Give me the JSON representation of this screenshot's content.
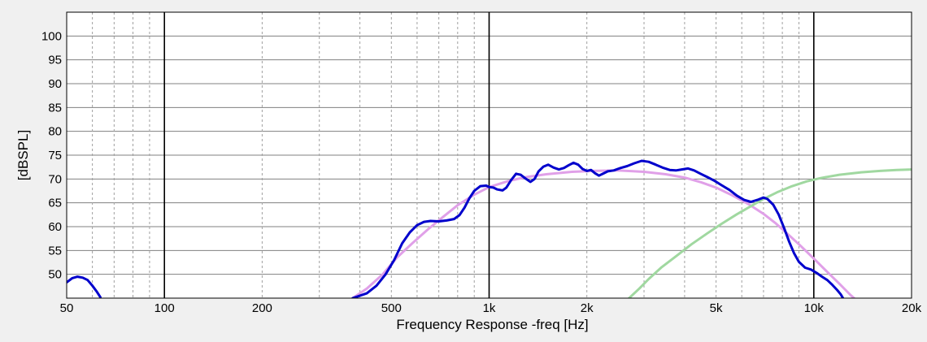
{
  "chart_data": {
    "type": "line",
    "title": "",
    "xlabel": "Frequency Response -freq [Hz]",
    "ylabel": "[dBSPL]",
    "x_scale": "log",
    "xlim": [
      50,
      20000
    ],
    "ylim": [
      45,
      105
    ],
    "grid": true,
    "x_ticks": [
      {
        "value": 50,
        "label": "50"
      },
      {
        "value": 100,
        "label": "100"
      },
      {
        "value": 200,
        "label": "200"
      },
      {
        "value": 500,
        "label": "500"
      },
      {
        "value": 1000,
        "label": "1k"
      },
      {
        "value": 2000,
        "label": "2k"
      },
      {
        "value": 5000,
        "label": "5k"
      },
      {
        "value": 10000,
        "label": "10k"
      },
      {
        "value": 20000,
        "label": "20k"
      }
    ],
    "y_ticks": [
      50,
      55,
      60,
      65,
      70,
      75,
      80,
      85,
      90,
      95,
      100
    ],
    "colors": {
      "background": "#f0f0f0",
      "plot_bg": "#ffffff",
      "grid_major": "#000000",
      "grid_minor": "#a0a0a0",
      "grid_horizontal": "#808080"
    },
    "series": [
      {
        "color": "#e0a0e8",
        "width": 3,
        "points": [
          [
            380,
            45
          ],
          [
            420,
            47
          ],
          [
            470,
            50
          ],
          [
            520,
            53.5
          ],
          [
            580,
            56.5
          ],
          [
            650,
            59.5
          ],
          [
            720,
            62
          ],
          [
            800,
            64.5
          ],
          [
            900,
            66.7
          ],
          [
            1000,
            68.3
          ],
          [
            1150,
            69.6
          ],
          [
            1300,
            70.4
          ],
          [
            1500,
            71.0
          ],
          [
            1800,
            71.5
          ],
          [
            2100,
            71.7
          ],
          [
            2500,
            71.8
          ],
          [
            3000,
            71.5
          ],
          [
            3500,
            71.0
          ],
          [
            4000,
            70.3
          ],
          [
            4500,
            69.3
          ],
          [
            5000,
            68.2
          ],
          [
            5600,
            66.6
          ],
          [
            6300,
            64.7
          ],
          [
            7000,
            62.7
          ],
          [
            7600,
            60.8
          ],
          [
            8200,
            58.8
          ],
          [
            9000,
            56.3
          ],
          [
            10000,
            53.3
          ],
          [
            11000,
            50.5
          ],
          [
            12000,
            48.0
          ],
          [
            13000,
            45.6
          ],
          [
            13300,
            45
          ]
        ]
      },
      {
        "color": "#a0d8a0",
        "width": 3,
        "points": [
          [
            2700,
            45
          ],
          [
            2900,
            47
          ],
          [
            3100,
            49
          ],
          [
            3400,
            51.5
          ],
          [
            3800,
            54
          ],
          [
            4200,
            56.3
          ],
          [
            4700,
            58.6
          ],
          [
            5200,
            60.6
          ],
          [
            5800,
            62.6
          ],
          [
            6400,
            64.3
          ],
          [
            7000,
            65.8
          ],
          [
            7700,
            67.2
          ],
          [
            8500,
            68.4
          ],
          [
            9500,
            69.5
          ],
          [
            10500,
            70.2
          ],
          [
            12000,
            70.9
          ],
          [
            14000,
            71.4
          ],
          [
            16000,
            71.7
          ],
          [
            18000,
            71.9
          ],
          [
            20000,
            72.0
          ]
        ]
      },
      {
        "color": "#0000cc",
        "width": 3,
        "points": [
          [
            50,
            48.3
          ],
          [
            52,
            49.2
          ],
          [
            54,
            49.5
          ],
          [
            56,
            49.3
          ],
          [
            58,
            48.8
          ],
          [
            60,
            47.6
          ],
          [
            62,
            46.3
          ],
          [
            63.5,
            45.2
          ],
          [
            380,
            45
          ],
          [
            420,
            46
          ],
          [
            450,
            47.6
          ],
          [
            480,
            50
          ],
          [
            510,
            53
          ],
          [
            540,
            56.5
          ],
          [
            570,
            58.8
          ],
          [
            600,
            60.3
          ],
          [
            630,
            61.0
          ],
          [
            660,
            61.2
          ],
          [
            700,
            61.1
          ],
          [
            740,
            61.3
          ],
          [
            780,
            61.6
          ],
          [
            810,
            62.4
          ],
          [
            840,
            64.0
          ],
          [
            870,
            66.0
          ],
          [
            900,
            67.5
          ],
          [
            940,
            68.5
          ],
          [
            980,
            68.6
          ],
          [
            1000,
            68.3
          ],
          [
            1030,
            68.2
          ],
          [
            1060,
            67.8
          ],
          [
            1100,
            67.6
          ],
          [
            1130,
            68.2
          ],
          [
            1170,
            69.8
          ],
          [
            1210,
            71.1
          ],
          [
            1250,
            70.9
          ],
          [
            1300,
            70.0
          ],
          [
            1340,
            69.4
          ],
          [
            1380,
            70.0
          ],
          [
            1420,
            71.6
          ],
          [
            1470,
            72.6
          ],
          [
            1520,
            73.0
          ],
          [
            1580,
            72.4
          ],
          [
            1640,
            72.0
          ],
          [
            1700,
            72.3
          ],
          [
            1760,
            72.9
          ],
          [
            1820,
            73.4
          ],
          [
            1880,
            73.0
          ],
          [
            1940,
            72.1
          ],
          [
            2000,
            71.7
          ],
          [
            2060,
            71.9
          ],
          [
            2120,
            71.2
          ],
          [
            2180,
            70.7
          ],
          [
            2240,
            71.1
          ],
          [
            2320,
            71.6
          ],
          [
            2420,
            71.8
          ],
          [
            2540,
            72.3
          ],
          [
            2660,
            72.7
          ],
          [
            2800,
            73.3
          ],
          [
            2950,
            73.8
          ],
          [
            3100,
            73.6
          ],
          [
            3260,
            73.0
          ],
          [
            3420,
            72.4
          ],
          [
            3600,
            71.9
          ],
          [
            3760,
            71.8
          ],
          [
            3920,
            72.0
          ],
          [
            4100,
            72.2
          ],
          [
            4280,
            71.8
          ],
          [
            4480,
            71.1
          ],
          [
            4700,
            70.4
          ],
          [
            4950,
            69.6
          ],
          [
            5200,
            68.7
          ],
          [
            5500,
            67.7
          ],
          [
            5800,
            66.5
          ],
          [
            6100,
            65.6
          ],
          [
            6400,
            65.2
          ],
          [
            6700,
            65.6
          ],
          [
            7000,
            66.1
          ],
          [
            7200,
            65.8
          ],
          [
            7500,
            64.6
          ],
          [
            7800,
            62.5
          ],
          [
            8100,
            59.7
          ],
          [
            8400,
            56.8
          ],
          [
            8700,
            54.4
          ],
          [
            9000,
            52.6
          ],
          [
            9400,
            51.4
          ],
          [
            9800,
            51.0
          ],
          [
            10200,
            50.3
          ],
          [
            10600,
            49.5
          ],
          [
            11000,
            48.8
          ],
          [
            11400,
            47.8
          ],
          [
            11800,
            46.7
          ],
          [
            12100,
            45.8
          ],
          [
            12300,
            45
          ]
        ]
      }
    ]
  }
}
